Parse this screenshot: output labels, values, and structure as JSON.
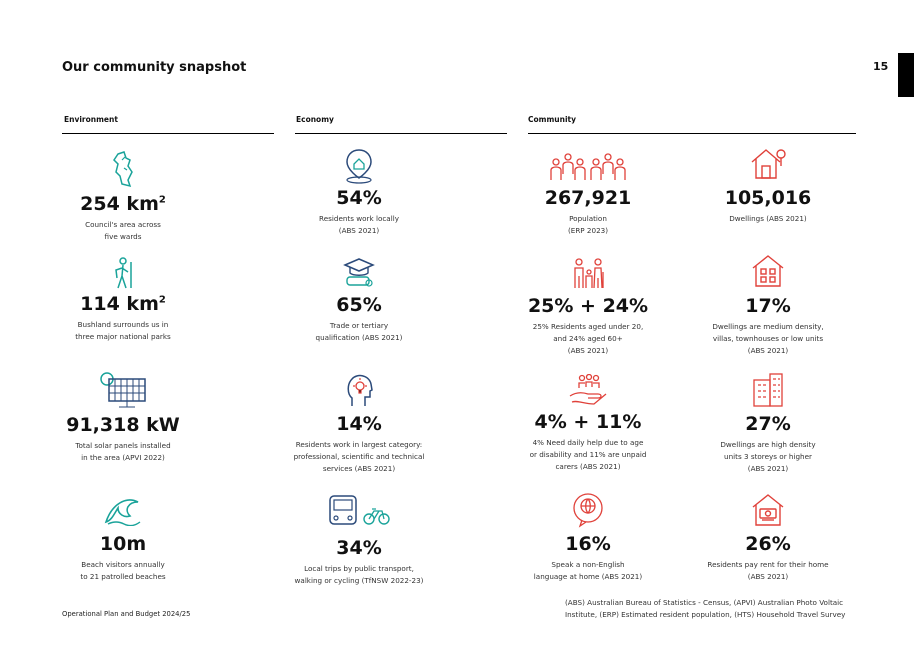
{
  "page": {
    "title": "Our community snapshot",
    "page_number": "15"
  },
  "columns": {
    "environment": "Environment",
    "economy": "Economy",
    "community": "Community"
  },
  "environment": {
    "s1": {
      "value": "254 km",
      "sup": "2",
      "desc1": "Council's area across",
      "desc2": "five wards",
      "icon": "map-icon"
    },
    "s2": {
      "value": "114 km",
      "sup": "2",
      "desc1": "Bushland surrounds us in",
      "desc2": "three major national parks",
      "icon": "hiker-icon"
    },
    "s3": {
      "value": "91,318 kW",
      "desc1": "Total solar panels installed",
      "desc2": "in the area (APVI 2022)",
      "icon": "solar-panel-icon"
    },
    "s4": {
      "value": "10m",
      "desc1": "Beach visitors annually",
      "desc2": "to 21 patrolled beaches",
      "icon": "wave-icon"
    }
  },
  "economy": {
    "s1": {
      "value": "54%",
      "desc1": "Residents work locally",
      "desc2": "(ABS 2021)",
      "icon": "local-location-icon"
    },
    "s2": {
      "value": "65%",
      "desc1": "Trade or tertiary",
      "desc2": "qualification (ABS 2021)",
      "icon": "graduation-icon"
    },
    "s3": {
      "value": "14%",
      "desc1": "Residents work in largest category:",
      "desc2": "professional, scientific and technical",
      "desc3": "services (ABS 2021)",
      "icon": "idea-head-icon"
    },
    "s4": {
      "value": "34%",
      "desc1": "Local trips by public transport,",
      "desc2": "walking or cycling (TfNSW 2022-23)",
      "icon": "bus-bike-icon"
    }
  },
  "community": {
    "s1": {
      "value": "267,921",
      "desc1": "Population",
      "desc2": "(ERP 2023)",
      "icon": "population-icon"
    },
    "s2": {
      "value": "25% + 24%",
      "desc1": "25% Residents aged under 20,",
      "desc2": "and 24% aged 60+",
      "desc3": "(ABS 2021)",
      "icon": "age-groups-icon"
    },
    "s3": {
      "value": "4% + 11%",
      "desc1": "4% Need daily help due to age",
      "desc2": "or disability and 11% are unpaid",
      "desc3": "carers (ABS 2021)",
      "icon": "care-hand-icon"
    },
    "s4": {
      "value": "16%",
      "desc1": "Speak a non-English",
      "desc2": "language at home (ABS 2021)",
      "icon": "language-globe-icon"
    }
  },
  "dwellings": {
    "s1": {
      "value": "105,016",
      "desc1": "Dwellings (ABS 2021)",
      "icon": "house-icon"
    },
    "s2": {
      "value": "17%",
      "desc1": "Dwellings are medium density,",
      "desc2": "villas, townhouses or low units",
      "desc3": "(ABS 2021)",
      "icon": "townhouse-icon"
    },
    "s3": {
      "value": "27%",
      "desc1": "Dwellings are high density",
      "desc2": "units 3 storeys or higher",
      "desc3": "(ABS 2021)",
      "icon": "apartment-icon"
    },
    "s4": {
      "value": "26%",
      "desc1": "Residents pay rent for their home",
      "desc2": "(ABS 2021)",
      "icon": "rent-house-icon"
    }
  },
  "footer": {
    "left": "Operational Plan and Budget 2024/25",
    "note1": "(ABS) Australian Bureau of Statistics - Census, (APVI) Australian Photo Voltaic",
    "note2": "Institute, (ERP) Estimated resident population, (HTS) Household Travel Survey"
  },
  "colors": {
    "teal": "#1aa39a",
    "navy": "#2b4a7a",
    "red": "#e0413a"
  }
}
